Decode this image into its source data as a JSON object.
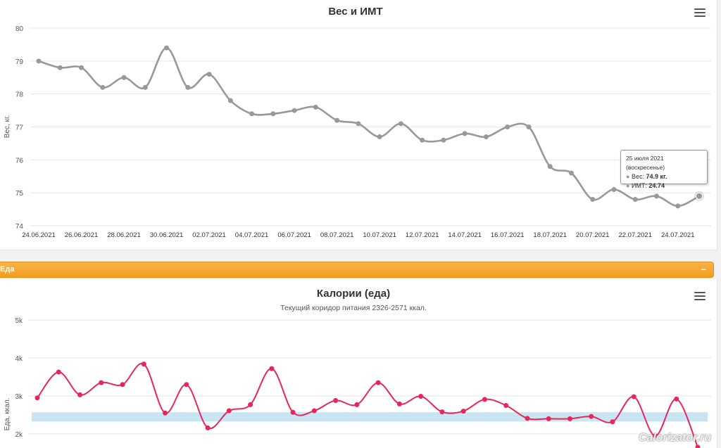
{
  "weight_chart": {
    "menu_icon": "hamburger-menu-icon",
    "chart_data": {
      "type": "line",
      "title": "Вес и ИМТ",
      "ylabel": "Вес, кг.",
      "ylim": [
        74,
        80
      ],
      "yticks": [
        "74",
        "75",
        "76",
        "77",
        "78",
        "79",
        "80"
      ],
      "xtick_labels": [
        "24.06.2021",
        "26.06.2021",
        "28.06.2021",
        "30.06.2021",
        "02.07.2021",
        "04.07.2021",
        "06.07.2021",
        "08.07.2021",
        "10.07.2021",
        "12.07.2021",
        "14.07.2021",
        "16.07.2021",
        "18.07.2021",
        "20.07.2021",
        "22.07.2021",
        "24.07.2021"
      ],
      "grid": true,
      "series": [
        {
          "name": "Вес",
          "color": "#999999",
          "x": [
            "2021-06-24",
            "2021-06-25",
            "2021-06-26",
            "2021-06-27",
            "2021-06-28",
            "2021-06-29",
            "2021-06-30",
            "2021-07-01",
            "2021-07-02",
            "2021-07-03",
            "2021-07-04",
            "2021-07-05",
            "2021-07-06",
            "2021-07-07",
            "2021-07-08",
            "2021-07-09",
            "2021-07-10",
            "2021-07-11",
            "2021-07-12",
            "2021-07-13",
            "2021-07-14",
            "2021-07-15",
            "2021-07-16",
            "2021-07-17",
            "2021-07-18",
            "2021-07-19",
            "2021-07-20",
            "2021-07-21",
            "2021-07-22",
            "2021-07-23",
            "2021-07-24",
            "2021-07-25"
          ],
          "values": [
            79.0,
            78.8,
            78.8,
            78.2,
            78.5,
            78.2,
            79.4,
            78.2,
            78.6,
            77.8,
            77.4,
            77.4,
            77.5,
            77.6,
            77.2,
            77.1,
            76.7,
            77.1,
            76.6,
            76.6,
            76.8,
            76.7,
            77.0,
            77.0,
            75.8,
            75.6,
            74.8,
            75.1,
            74.8,
            74.9,
            74.6,
            74.9
          ]
        }
      ],
      "tooltip": {
        "date": "25 июля 2021 (воскресенье)",
        "weight_label": "Вес: ",
        "weight_value": "74.9 кг.",
        "bmi_label": "ИМТ: ",
        "bmi_value": "24.74"
      }
    }
  },
  "food_bar": {
    "label": "Еда",
    "collapse_symbol": "–"
  },
  "food_chart": {
    "menu_icon": "hamburger-menu-icon",
    "chart_data": {
      "type": "line",
      "title": "Калории (еда)",
      "subtitle": "Текущий коридор питания 2326-2571 ккал.",
      "ylabel": "Еда, ккал.",
      "ylim": [
        2000,
        5000
      ],
      "yticks": [
        "2k",
        "3k",
        "4k",
        "5k"
      ],
      "band": [
        2326,
        2571
      ],
      "band_color": "#c9e5f2",
      "grid": true,
      "series": [
        {
          "name": "Еда",
          "color": "#e8265a",
          "x": [
            "2021-06-24",
            "2021-06-25",
            "2021-06-26",
            "2021-06-27",
            "2021-06-28",
            "2021-06-29",
            "2021-06-30",
            "2021-07-01",
            "2021-07-02",
            "2021-07-03",
            "2021-07-04",
            "2021-07-05",
            "2021-07-06",
            "2021-07-07",
            "2021-07-08",
            "2021-07-09",
            "2021-07-10",
            "2021-07-11",
            "2021-07-12",
            "2021-07-13",
            "2021-07-14",
            "2021-07-15",
            "2021-07-16",
            "2021-07-17",
            "2021-07-18",
            "2021-07-19",
            "2021-07-20",
            "2021-07-21",
            "2021-07-22",
            "2021-07-23",
            "2021-07-24",
            "2021-07-25"
          ],
          "values": [
            2950,
            3630,
            3030,
            3350,
            3300,
            3840,
            2550,
            3300,
            2160,
            2610,
            2770,
            3720,
            2570,
            2610,
            2880,
            2770,
            3350,
            2790,
            2990,
            2580,
            2600,
            2910,
            2750,
            2410,
            2400,
            2400,
            2460,
            2320,
            2980,
            1950,
            2920,
            1650
          ]
        }
      ]
    }
  },
  "watermark": "Calorizator.ru"
}
